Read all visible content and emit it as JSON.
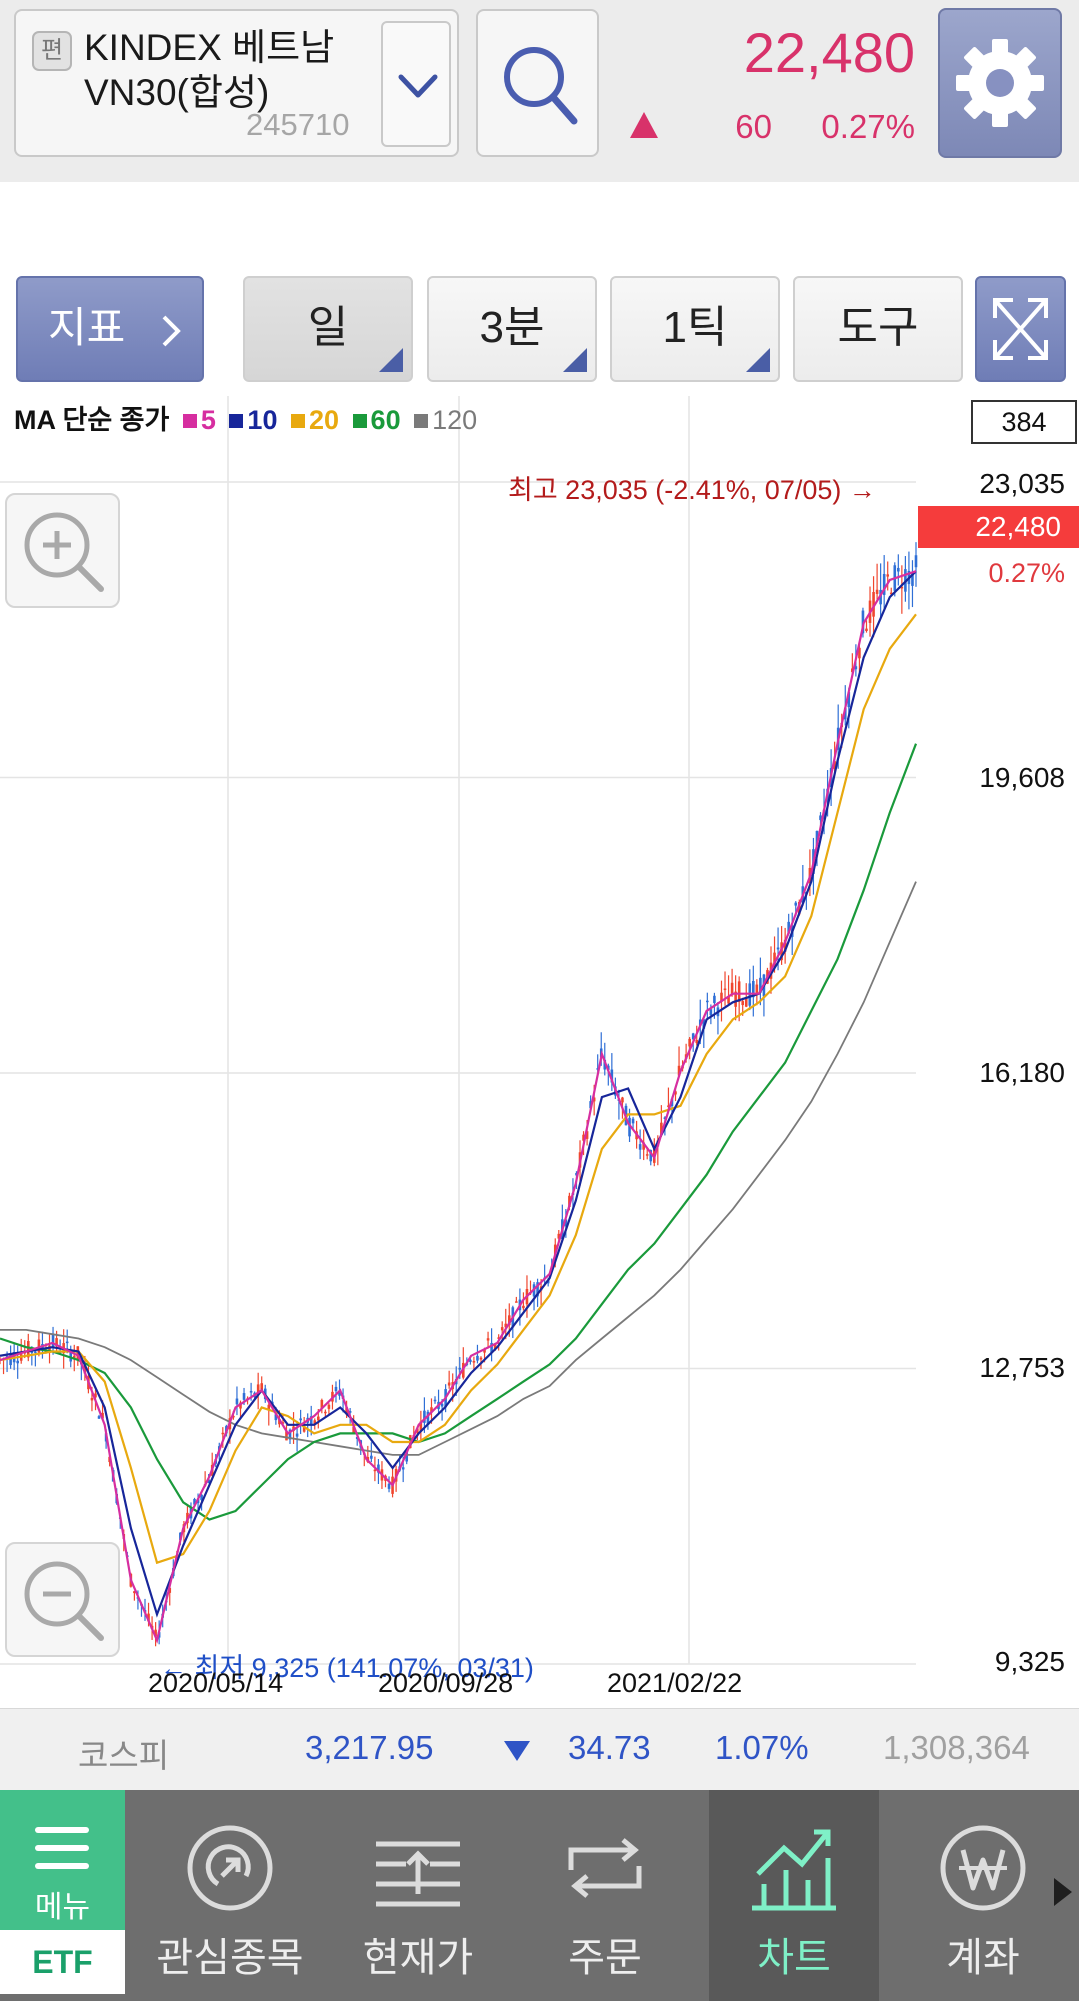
{
  "header": {
    "edit_badge": "편",
    "stock_name": "KINDEX 베트남VN30(합성)",
    "stock_code": "245710",
    "price": "22,480",
    "change": "60",
    "change_pct": "0.27%",
    "colors": {
      "up": "#d8326a",
      "accent": "#7d88b6"
    }
  },
  "toolbar": {
    "indicator_label": "지표",
    "period_day": "일",
    "period_minute": "3분",
    "period_tick": "1틱",
    "tools": "도구"
  },
  "chart": {
    "legend_title": "MA 단순 종가",
    "legend": [
      {
        "label": "5",
        "color": "#d62ea0"
      },
      {
        "label": "10",
        "color": "#17269a"
      },
      {
        "label": "20",
        "color": "#e8a90f"
      },
      {
        "label": "60",
        "color": "#1a9a3b"
      },
      {
        "label": "120",
        "color": "#7a7a7a"
      }
    ],
    "count": "384",
    "y_labels": [
      "23,035",
      "19,608",
      "16,180",
      "12,753",
      "9,325"
    ],
    "current_price": "22,480",
    "current_pct": "0.27%",
    "high_label": "최고 23,035 (-2.41%, 07/05) →",
    "low_label": "← 최저 9,325 (141.07%, 03/31)",
    "x_labels": [
      "2020/05/14",
      "2020/09/28",
      "2021/02/22"
    ]
  },
  "chart_data": {
    "type": "line",
    "title": "",
    "ylim": [
      9325,
      23035
    ],
    "yticks": [
      23035,
      19608,
      16180,
      12753,
      9325
    ],
    "grid": true,
    "x_ticks": [
      "2020/05/14",
      "2020/09/28",
      "2021/02/22"
    ],
    "high": {
      "value": 23035,
      "pct": "-2.41%",
      "date": "07/05"
    },
    "low": {
      "value": 9325,
      "pct": "141.07%",
      "date": "03/31"
    },
    "last": 22480,
    "series": [
      {
        "name": "5",
        "color": "#d62ea0",
        "values": [
          12850,
          12950,
          13050,
          12900,
          12100,
          10300,
          9600,
          10900,
          11500,
          12300,
          12500,
          12000,
          12200,
          12500,
          11700,
          11400,
          12100,
          12400,
          12900,
          13050,
          13550,
          13850,
          14900,
          16400,
          15600,
          15200,
          16200,
          16900,
          17100,
          17100,
          17700,
          18500,
          20000,
          21400,
          21900,
          22000
        ]
      },
      {
        "name": "10",
        "color": "#17269a",
        "values": [
          12900,
          12950,
          13000,
          12950,
          12300,
          10900,
          9900,
          10700,
          11400,
          12100,
          12500,
          12100,
          12100,
          12300,
          12000,
          11600,
          12000,
          12300,
          12700,
          13000,
          13400,
          13800,
          14700,
          15900,
          16000,
          15300,
          15900,
          16800,
          17000,
          17100,
          17600,
          18400,
          19800,
          21000,
          21700,
          22000
        ]
      },
      {
        "name": "20",
        "color": "#e8a90f",
        "values": [
          12850,
          12900,
          12950,
          12950,
          12600,
          11600,
          10500,
          10600,
          11100,
          11800,
          12300,
          12200,
          12000,
          12100,
          12100,
          11900,
          11900,
          12100,
          12500,
          12800,
          13200,
          13600,
          14300,
          15300,
          15700,
          15700,
          15800,
          16400,
          16800,
          17000,
          17300,
          18000,
          19200,
          20400,
          21100,
          21500
        ]
      },
      {
        "name": "60",
        "color": "#1a9a3b",
        "values": [
          13100,
          13000,
          12950,
          12850,
          12700,
          12300,
          11700,
          11200,
          11000,
          11100,
          11400,
          11700,
          11900,
          12000,
          12000,
          12000,
          11900,
          12000,
          12200,
          12400,
          12600,
          12800,
          13100,
          13500,
          13900,
          14200,
          14600,
          15000,
          15500,
          15900,
          16300,
          16900,
          17500,
          18300,
          19200,
          20000
        ]
      },
      {
        "name": "120",
        "color": "#7a7a7a",
        "values": [
          13200,
          13200,
          13150,
          13100,
          13000,
          12850,
          12650,
          12450,
          12250,
          12100,
          12000,
          11950,
          11900,
          11850,
          11800,
          11750,
          11750,
          11900,
          12050,
          12200,
          12400,
          12550,
          12850,
          13100,
          13350,
          13600,
          13900,
          14250,
          14600,
          15000,
          15400,
          15850,
          16400,
          17000,
          17700,
          18400
        ]
      }
    ]
  },
  "index_bar": {
    "name": "코스피",
    "value": "3,217.95",
    "change": "34.73",
    "change_pct": "1.07%",
    "volume": "1,308,364",
    "colors": {
      "down": "#2f54c6"
    }
  },
  "bottom_nav": {
    "menu_label": "메뉴",
    "category_label": "ETF",
    "items": [
      {
        "label": "관심종목",
        "icon": "watchlist-icon"
      },
      {
        "label": "현재가",
        "icon": "current-price-icon"
      },
      {
        "label": "주문",
        "icon": "order-icon"
      },
      {
        "label": "차트",
        "icon": "chart-icon",
        "active": true
      },
      {
        "label": "계좌",
        "icon": "account-won-icon"
      }
    ],
    "colors": {
      "active": "#7ff0c7",
      "menu": "#43c08a"
    }
  }
}
